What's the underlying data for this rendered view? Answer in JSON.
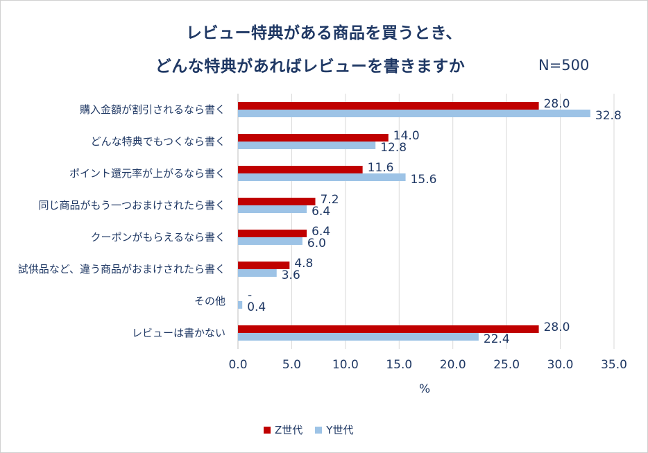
{
  "chart_data": {
    "type": "bar",
    "orientation": "horizontal",
    "title_line1": "レビュー特典がある商品を買うとき、",
    "title_line2": "どんな特典があればレビューを書きますか",
    "note": "N=500",
    "xlabel": "%",
    "xlim": [
      0,
      35
    ],
    "xticks": [
      "0.0",
      "5.0",
      "10.0",
      "15.0",
      "20.0",
      "25.0",
      "30.0",
      "35.0"
    ],
    "categories": [
      "購入金額が割引されるなら書く",
      "どんな特典でもつくなら書く",
      "ポイント還元率が上がるなら書く",
      "同じ商品がもう一つおまけされたら書く",
      "クーポンがもらえるなら書く",
      "試供品など、違う商品がおまけされたら書く",
      "その他",
      "レビューは書かない"
    ],
    "series": [
      {
        "name": "Z世代",
        "color": "#c00000",
        "values": [
          28.0,
          14.0,
          11.6,
          7.2,
          6.4,
          4.8,
          0,
          28.0
        ],
        "labels": [
          "28.0",
          "14.0",
          "11.6",
          "7.2",
          "6.4",
          "4.8",
          "-",
          "28.0"
        ]
      },
      {
        "name": "Y世代",
        "color": "#9dc3e6",
        "values": [
          32.8,
          12.8,
          15.6,
          6.4,
          6.0,
          3.6,
          0.4,
          22.4
        ],
        "labels": [
          "32.8",
          "12.8",
          "15.6",
          "6.4",
          "6.0",
          "3.6",
          "0.4",
          "22.4"
        ]
      }
    ],
    "grid": true,
    "legend_position": "bottom"
  }
}
